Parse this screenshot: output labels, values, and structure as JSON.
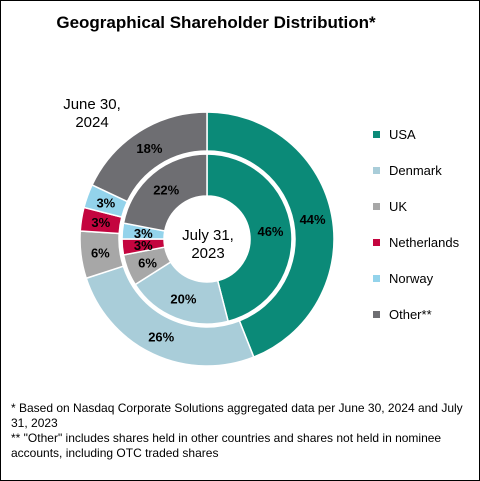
{
  "chart_data": {
    "type": "pie",
    "title": "Geographical Shareholder Distribution*",
    "outer_ring_label": "June 30,\n2024",
    "inner_ring_label": "July 31,\n2023",
    "categories": [
      "USA",
      "Denmark",
      "UK",
      "Netherlands",
      "Norway",
      "Other**"
    ],
    "colors": [
      "#0b8a78",
      "#a9cdd9",
      "#a7a7a7",
      "#c4053f",
      "#93d3eb",
      "#6e6e72"
    ],
    "series": [
      {
        "name": "June 30, 2024",
        "values": [
          44,
          26,
          6,
          3,
          3,
          18
        ],
        "labels": [
          "44%",
          "26%",
          "6%",
          "3%",
          "3%",
          "18%"
        ]
      },
      {
        "name": "July 31, 2023",
        "values": [
          46,
          20,
          6,
          3,
          3,
          22
        ],
        "labels": [
          "46%",
          "20%",
          "6%",
          "3%",
          "3%",
          "22%"
        ]
      }
    ],
    "legend_position": "right"
  },
  "footnotes": [
    "* Based on Nasdaq Corporate Solutions aggregated data per June 30, 2024 and July 31, 2023",
    "** \"Other\" includes shares held in other countries and shares not held in nominee accounts, including OTC traded shares"
  ]
}
